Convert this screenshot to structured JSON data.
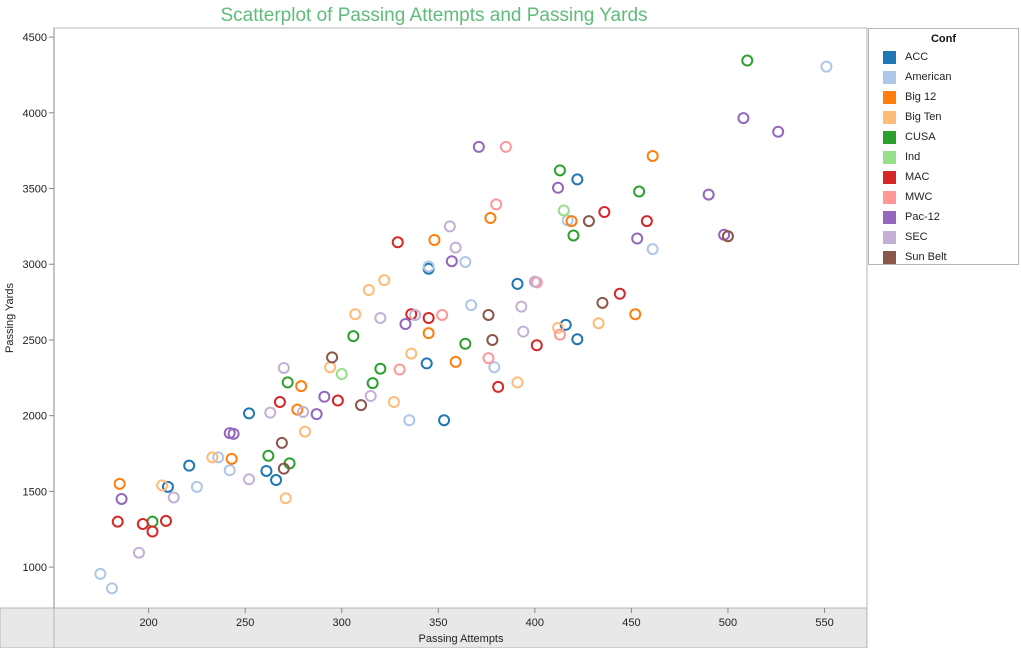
{
  "chart_data": {
    "type": "scatter",
    "title": "Scatterplot of Passing Attempts and Passing Yards",
    "xlabel": "Passing Attempts",
    "ylabel": "Passing Yards",
    "xlim": [
      151,
      572
    ],
    "ylim": [
      730,
      4560
    ],
    "xticks": [
      200,
      250,
      300,
      350,
      400,
      450,
      500,
      550
    ],
    "yticks": [
      1000,
      1500,
      2000,
      2500,
      3000,
      3500,
      4000,
      4500
    ],
    "marker": "hollow-circle",
    "legend_title": "Conf",
    "legend_position": "right",
    "series": [
      {
        "name": "ACC",
        "color": "#1f77b4",
        "points": [
          [
            221,
            1670
          ],
          [
            210,
            1530
          ],
          [
            252,
            2015
          ],
          [
            261,
            1635
          ],
          [
            266,
            1575
          ],
          [
            344,
            2345
          ],
          [
            345,
            2970
          ],
          [
            353,
            1970
          ],
          [
            391,
            2870
          ],
          [
            416,
            2600
          ],
          [
            422,
            2505
          ],
          [
            422,
            3560
          ]
        ]
      },
      {
        "name": "American",
        "color": "#aec7e8",
        "points": [
          [
            175,
            955
          ],
          [
            181,
            860
          ],
          [
            225,
            1530
          ],
          [
            236,
            1725
          ],
          [
            242,
            1640
          ],
          [
            335,
            1970
          ],
          [
            345,
            2985
          ],
          [
            364,
            3015
          ],
          [
            367,
            2730
          ],
          [
            379,
            2320
          ],
          [
            417,
            3290
          ],
          [
            461,
            3100
          ],
          [
            551,
            4305
          ]
        ]
      },
      {
        "name": "Big 12",
        "color": "#ff7f0e",
        "points": [
          [
            185,
            1550
          ],
          [
            243,
            1715
          ],
          [
            277,
            2040
          ],
          [
            279,
            2195
          ],
          [
            345,
            2545
          ],
          [
            348,
            3160
          ],
          [
            359,
            2355
          ],
          [
            377,
            3305
          ],
          [
            419,
            3285
          ],
          [
            452,
            2670
          ],
          [
            461,
            3715
          ]
        ]
      },
      {
        "name": "Big Ten",
        "color": "#ffbb78",
        "points": [
          [
            207,
            1540
          ],
          [
            233,
            1725
          ],
          [
            271,
            1455
          ],
          [
            281,
            1895
          ],
          [
            294,
            2320
          ],
          [
            307,
            2670
          ],
          [
            314,
            2830
          ],
          [
            322,
            2895
          ],
          [
            327,
            2090
          ],
          [
            336,
            2410
          ],
          [
            391,
            2220
          ],
          [
            412,
            2580
          ],
          [
            433,
            2610
          ]
        ]
      },
      {
        "name": "CUSA",
        "color": "#2ca02c",
        "points": [
          [
            202,
            1300
          ],
          [
            262,
            1735
          ],
          [
            272,
            2220
          ],
          [
            273,
            1685
          ],
          [
            306,
            2525
          ],
          [
            316,
            2215
          ],
          [
            320,
            2310
          ],
          [
            364,
            2475
          ],
          [
            413,
            3620
          ],
          [
            420,
            3190
          ],
          [
            454,
            3480
          ],
          [
            510,
            4345
          ]
        ]
      },
      {
        "name": "Ind",
        "color": "#98df8a",
        "points": [
          [
            300,
            2275
          ],
          [
            415,
            3355
          ]
        ]
      },
      {
        "name": "MAC",
        "color": "#d62728",
        "points": [
          [
            184,
            1300
          ],
          [
            197,
            1285
          ],
          [
            202,
            1235
          ],
          [
            209,
            1305
          ],
          [
            268,
            2090
          ],
          [
            298,
            2100
          ],
          [
            329,
            3145
          ],
          [
            336,
            2670
          ],
          [
            345,
            2645
          ],
          [
            381,
            2190
          ],
          [
            401,
            2465
          ],
          [
            436,
            3345
          ],
          [
            444,
            2805
          ],
          [
            458,
            3285
          ]
        ]
      },
      {
        "name": "MWC",
        "color": "#ff9896",
        "points": [
          [
            330,
            2305
          ],
          [
            352,
            2665
          ],
          [
            376,
            2380
          ],
          [
            380,
            3395
          ],
          [
            385,
            3775
          ],
          [
            401,
            2880
          ],
          [
            413,
            2535
          ]
        ]
      },
      {
        "name": "Pac-12",
        "color": "#9467bd",
        "points": [
          [
            186,
            1450
          ],
          [
            242,
            1885
          ],
          [
            244,
            1880
          ],
          [
            287,
            2010
          ],
          [
            291,
            2125
          ],
          [
            333,
            2605
          ],
          [
            357,
            3020
          ],
          [
            371,
            3775
          ],
          [
            412,
            3505
          ],
          [
            453,
            3170
          ],
          [
            490,
            3460
          ],
          [
            498,
            3195
          ],
          [
            508,
            3965
          ],
          [
            526,
            3875
          ]
        ]
      },
      {
        "name": "SEC",
        "color": "#c5b0d5",
        "points": [
          [
            195,
            1095
          ],
          [
            213,
            1460
          ],
          [
            252,
            1580
          ],
          [
            263,
            2020
          ],
          [
            270,
            2315
          ],
          [
            280,
            2025
          ],
          [
            315,
            2130
          ],
          [
            320,
            2645
          ],
          [
            338,
            2665
          ],
          [
            356,
            3250
          ],
          [
            359,
            3110
          ],
          [
            393,
            2720
          ],
          [
            394,
            2555
          ],
          [
            400,
            2885
          ]
        ]
      },
      {
        "name": "Sun Belt",
        "color": "#8c564b",
        "points": [
          [
            269,
            1820
          ],
          [
            270,
            1650
          ],
          [
            295,
            2385
          ],
          [
            310,
            2070
          ],
          [
            376,
            2665
          ],
          [
            378,
            2500
          ],
          [
            428,
            3285
          ],
          [
            435,
            2745
          ],
          [
            500,
            3185
          ]
        ]
      }
    ]
  }
}
